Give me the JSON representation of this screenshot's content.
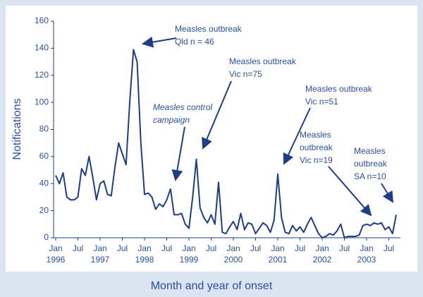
{
  "chart_data": {
    "type": "line",
    "y_label": "Notifications",
    "x_label": "Month and year of onset",
    "color": "#1f3c88",
    "categories": [
      "Jan",
      null,
      null,
      null,
      null,
      null,
      "Jul",
      null,
      null,
      null,
      null,
      null,
      "Jan",
      null,
      null,
      null,
      null,
      null,
      "Jul",
      null,
      null,
      null,
      null,
      null,
      "Jan",
      null,
      null,
      null,
      null,
      null,
      "Jul",
      null,
      null,
      null,
      null,
      null,
      "Jan",
      null,
      null,
      null,
      null,
      null,
      "Jul",
      null,
      null,
      null,
      null,
      null,
      "Jan",
      null,
      null,
      null,
      null,
      null,
      "Jul",
      null,
      null,
      null,
      null,
      null,
      "Jan",
      null,
      null,
      null,
      null,
      null,
      "Jul",
      null,
      null,
      null,
      null,
      null,
      "Jan",
      null,
      null,
      null,
      null,
      null,
      "Jul",
      null,
      null,
      null,
      null,
      null,
      "Jan",
      null,
      null,
      null,
      null,
      null,
      "Jul",
      null,
      null
    ],
    "x_groups": [
      "1996",
      "1997",
      "1998",
      "1999",
      "2000",
      "2001",
      "2002",
      "2003"
    ],
    "values": [
      46,
      40,
      48,
      30,
      28,
      28,
      30,
      51,
      46,
      60,
      45,
      28,
      40,
      42,
      32,
      31,
      52,
      70,
      62,
      54,
      100,
      139,
      130,
      70,
      32,
      33,
      30,
      21,
      25,
      23,
      28,
      36,
      17,
      17,
      18,
      10,
      7,
      30,
      58,
      22,
      15,
      11,
      17,
      10,
      41,
      4,
      3,
      8,
      12,
      6,
      18,
      6,
      11,
      10,
      3,
      7,
      11,
      9,
      4,
      13,
      47,
      15,
      4,
      3,
      9,
      5,
      8,
      4,
      10,
      15,
      9,
      3,
      0,
      1,
      3,
      2,
      5,
      10,
      0,
      1,
      1,
      1,
      2,
      9,
      10,
      9,
      11,
      10,
      11,
      6,
      8,
      3,
      17
    ],
    "ylim": [
      0,
      160
    ],
    "yticks": [
      0,
      20,
      40,
      60,
      80,
      100,
      120,
      140,
      160
    ],
    "annotations": [
      {
        "lines": [
          "Measles outbreak",
          "Qld  n = 46"
        ],
        "italic": false
      },
      {
        "lines": [
          "Measles outbreak",
          "Vic n=75"
        ],
        "italic": false
      },
      {
        "lines": [
          "Measles control",
          "campaign"
        ],
        "italic": true
      },
      {
        "lines": [
          "Measles outbreak",
          "Vic n=51"
        ],
        "italic": false
      },
      {
        "lines": [
          "Measles",
          "outbreak",
          "Vic n=19"
        ],
        "italic": false
      },
      {
        "lines": [
          "Measles",
          "outbreak",
          "SA n=10"
        ],
        "italic": false
      }
    ]
  }
}
